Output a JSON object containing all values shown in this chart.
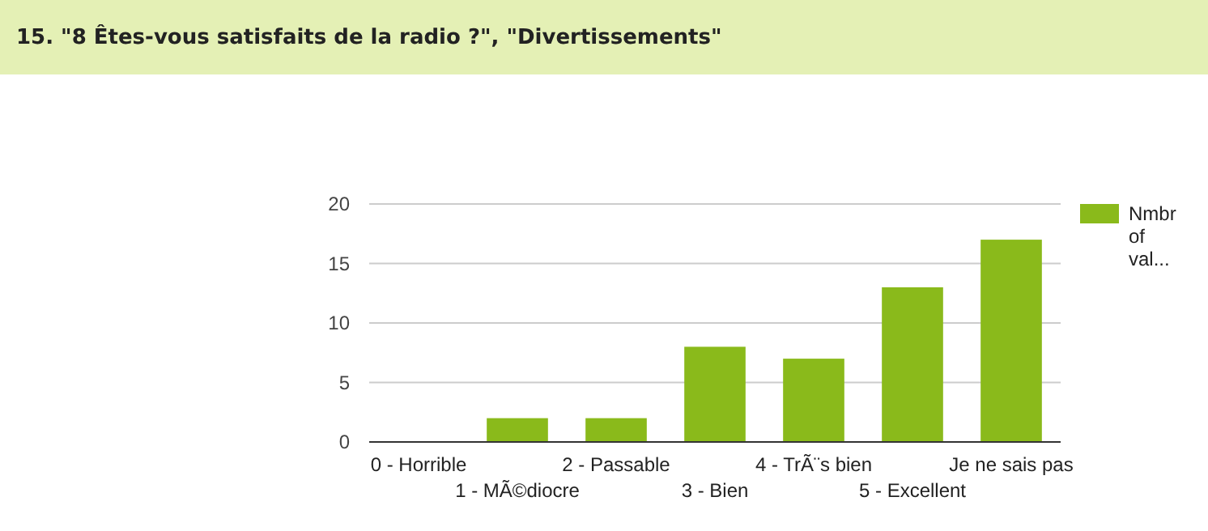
{
  "chart_data": {
    "type": "bar",
    "title": "15. \"8 Êtes-vous satisfaits de la radio ?\", \"Divertissements\"",
    "categories": [
      "0 - Horrible",
      "1 - MÃ©diocre",
      "2 - Passable",
      "3 - Bien",
      "4 - TrÃ¨s bien",
      "5 - Excellent",
      "Je ne sais pas"
    ],
    "series": [
      {
        "name": "Nmbr of val...",
        "color": "#8aba1b",
        "values": [
          0,
          2,
          2,
          8,
          7,
          13,
          17
        ]
      }
    ],
    "ylim": [
      0,
      20
    ],
    "yticks": [
      0,
      5,
      10,
      15,
      20
    ],
    "grid": "y",
    "legend": "right"
  }
}
